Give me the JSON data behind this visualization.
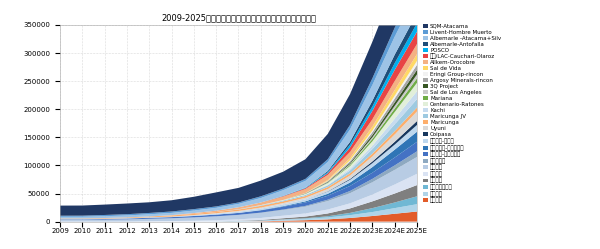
{
  "title": "2009-2025年全球盐湖提锂产能扩张预测（吨，碳酸锂当量）",
  "years": [
    "2009",
    "2010",
    "2011",
    "2012",
    "2013",
    "2014",
    "2015",
    "2016",
    "2017",
    "2018",
    "2019",
    "2020",
    "2021E",
    "2022E",
    "2023E",
    "2024E",
    "2025E"
  ],
  "ylim": [
    0,
    350000
  ],
  "yticks": [
    0,
    50000,
    100000,
    150000,
    200000,
    250000,
    300000,
    350000
  ],
  "series": [
    {
      "label": "西藏城投",
      "color": "#e25c2a",
      "values": [
        0,
        0,
        0,
        0,
        0,
        0,
        0,
        0,
        0,
        500,
        1500,
        2500,
        4000,
        6500,
        10000,
        14000,
        18000
      ]
    },
    {
      "label": "银泰锂业",
      "color": "#afd4e9",
      "values": [
        0,
        0,
        0,
        0,
        0,
        0,
        0,
        500,
        1000,
        1500,
        2000,
        2500,
        3500,
        5000,
        7000,
        10000,
        13000
      ]
    },
    {
      "label": "赣达卡兴华锂盐",
      "color": "#70b8d4",
      "values": [
        0,
        0,
        0,
        0,
        0,
        0,
        0,
        0,
        0,
        0,
        500,
        1000,
        2000,
        4000,
        7000,
        10000,
        14000
      ]
    },
    {
      "label": "五矿盐湖",
      "color": "#7f7f7f",
      "values": [
        0,
        0,
        0,
        0,
        0,
        0,
        0,
        0,
        500,
        1000,
        2000,
        3000,
        5000,
        8000,
        12000,
        16000,
        20000
      ]
    },
    {
      "label": "藏格锂业",
      "color": "#dae3f3",
      "values": [
        0,
        0,
        0,
        0,
        500,
        1000,
        1500,
        2000,
        2500,
        3500,
        4500,
        5500,
        7000,
        9000,
        12000,
        16000,
        20000
      ]
    },
    {
      "label": "盐湖股份",
      "color": "#b8cce4",
      "values": [
        3000,
        3000,
        3500,
        4000,
        4500,
        5000,
        6000,
        7000,
        8000,
        9000,
        10000,
        12000,
        15000,
        18000,
        22000,
        26000,
        30000
      ]
    },
    {
      "label": "青海恒信融",
      "color": "#8ea9c1",
      "values": [
        0,
        0,
        0,
        0,
        0,
        0,
        0,
        0,
        0,
        500,
        1000,
        1500,
        2500,
        4000,
        6000,
        8000,
        10000
      ]
    },
    {
      "label": "中信国安-西台吉乃尔",
      "color": "#4472c4",
      "values": [
        1000,
        1000,
        1200,
        1500,
        1800,
        2000,
        2500,
        3000,
        3500,
        4000,
        5000,
        6000,
        7000,
        9000,
        11000,
        14000,
        17000
      ]
    },
    {
      "label": "东台锂资源-东台吉乃尔",
      "color": "#2f75b6",
      "values": [
        0,
        0,
        0,
        0,
        0,
        0,
        0,
        0,
        0,
        500,
        1000,
        2000,
        3500,
        6000,
        10000,
        14000,
        18000
      ]
    },
    {
      "label": "西藏矿业-扎布耶",
      "color": "#bdd7ee",
      "values": [
        500,
        600,
        700,
        800,
        900,
        1000,
        1200,
        1500,
        2000,
        2500,
        3000,
        3500,
        4000,
        5000,
        7000,
        9000,
        12000
      ]
    },
    {
      "label": "Coipasa",
      "color": "#17375e",
      "values": [
        0,
        0,
        0,
        0,
        0,
        0,
        0,
        0,
        0,
        0,
        0,
        0,
        500,
        1500,
        3000,
        5000,
        7000
      ]
    },
    {
      "label": "Uyuni",
      "color": "#d9d9d9",
      "values": [
        0,
        0,
        0,
        0,
        0,
        0,
        500,
        1000,
        1500,
        2000,
        2500,
        3000,
        4000,
        6000,
        9000,
        13000,
        17000
      ]
    },
    {
      "label": "Maricunga",
      "color": "#fdae6b",
      "values": [
        1000,
        1000,
        1000,
        1200,
        1500,
        2000,
        2000,
        2000,
        2500,
        3000,
        3000,
        3000,
        3500,
        4000,
        5000,
        6000,
        7000
      ]
    },
    {
      "label": "Maricunga JV",
      "color": "#9ecae1",
      "values": [
        0,
        0,
        0,
        0,
        0,
        0,
        0,
        0,
        500,
        1000,
        1500,
        2000,
        3000,
        5000,
        8000,
        12000,
        15000
      ]
    },
    {
      "label": "Kachi",
      "color": "#c6dbef",
      "values": [
        0,
        0,
        0,
        0,
        0,
        0,
        0,
        0,
        0,
        0,
        0,
        0,
        1000,
        3000,
        6000,
        10000,
        14000
      ]
    },
    {
      "label": "Centenario-Ratones",
      "color": "#e2efda",
      "values": [
        0,
        0,
        0,
        0,
        0,
        0,
        0,
        0,
        0,
        500,
        1000,
        2000,
        3000,
        5000,
        8000,
        12000,
        15000
      ]
    },
    {
      "label": "Mariana",
      "color": "#70ad47",
      "values": [
        0,
        0,
        0,
        0,
        0,
        0,
        0,
        0,
        0,
        0,
        0,
        0,
        500,
        2000,
        4000,
        6000,
        8000
      ]
    },
    {
      "label": "Sal de Los Angeles",
      "color": "#c9c9c9",
      "values": [
        0,
        0,
        0,
        0,
        0,
        0,
        0,
        0,
        0,
        0,
        0,
        0,
        500,
        1500,
        3000,
        5000,
        7000
      ]
    },
    {
      "label": "3Q Project",
      "color": "#375623",
      "values": [
        0,
        0,
        0,
        0,
        0,
        0,
        0,
        0,
        0,
        0,
        0,
        500,
        1000,
        2000,
        4000,
        6000,
        8000
      ]
    },
    {
      "label": "Argosy Minerals-rincon",
      "color": "#a6a6a6",
      "values": [
        0,
        0,
        0,
        0,
        0,
        0,
        0,
        0,
        0,
        0,
        0,
        500,
        1500,
        3000,
        5000,
        7000,
        9000
      ]
    },
    {
      "label": "Eringi Group-rincon",
      "color": "#f2f2f2",
      "values": [
        0,
        0,
        0,
        0,
        0,
        0,
        0,
        0,
        0,
        0,
        0,
        0,
        500,
        1500,
        3000,
        5000,
        7000
      ]
    },
    {
      "label": "Sal de Vida",
      "color": "#ffd966",
      "values": [
        0,
        0,
        0,
        0,
        0,
        0,
        0,
        0,
        0,
        0,
        0,
        500,
        1500,
        4000,
        7000,
        10000,
        12000
      ]
    },
    {
      "label": "Allkem-Orocobre",
      "color": "#f4b183",
      "values": [
        0,
        0,
        0,
        0,
        0,
        500,
        1500,
        2500,
        3500,
        4500,
        6000,
        7000,
        9000,
        11000,
        13000,
        16000,
        18000
      ]
    },
    {
      "label": "赣锋/LAC-Cauchari-Olaroz",
      "color": "#e84545",
      "values": [
        0,
        0,
        0,
        0,
        0,
        0,
        0,
        0,
        0,
        0,
        800,
        1500,
        3000,
        8000,
        15000,
        20000,
        22000
      ]
    },
    {
      "label": "POSCO",
      "color": "#00b0f0",
      "values": [
        0,
        0,
        0,
        0,
        0,
        0,
        0,
        0,
        0,
        0,
        500,
        1000,
        2000,
        5000,
        8000,
        12000,
        15000
      ]
    },
    {
      "label": "Albemarle-Antofalla",
      "color": "#1f4e79",
      "values": [
        0,
        0,
        0,
        0,
        0,
        0,
        0,
        0,
        0,
        0,
        0,
        0,
        2000,
        5000,
        10000,
        15000,
        18000
      ]
    },
    {
      "label": "Albemarle -Atacama+Silv",
      "color": "#9dc3e6",
      "values": [
        3000,
        3000,
        3200,
        3500,
        3800,
        4000,
        4500,
        5000,
        6000,
        8000,
        10000,
        12000,
        16000,
        22000,
        28000,
        32000,
        36000
      ]
    },
    {
      "label": "Livent-Hombre Muerto",
      "color": "#5b9bd5",
      "values": [
        2000,
        2000,
        2200,
        2200,
        2400,
        2500,
        2500,
        2500,
        2500,
        3000,
        3000,
        3500,
        5000,
        8000,
        12000,
        16000,
        20000
      ]
    },
    {
      "label": "SQM-Atacama",
      "color": "#203864",
      "values": [
        18000,
        18000,
        18500,
        19000,
        19000,
        20000,
        22000,
        25000,
        26000,
        28000,
        30000,
        35000,
        45000,
        55000,
        65000,
        75000,
        80000
      ]
    }
  ]
}
